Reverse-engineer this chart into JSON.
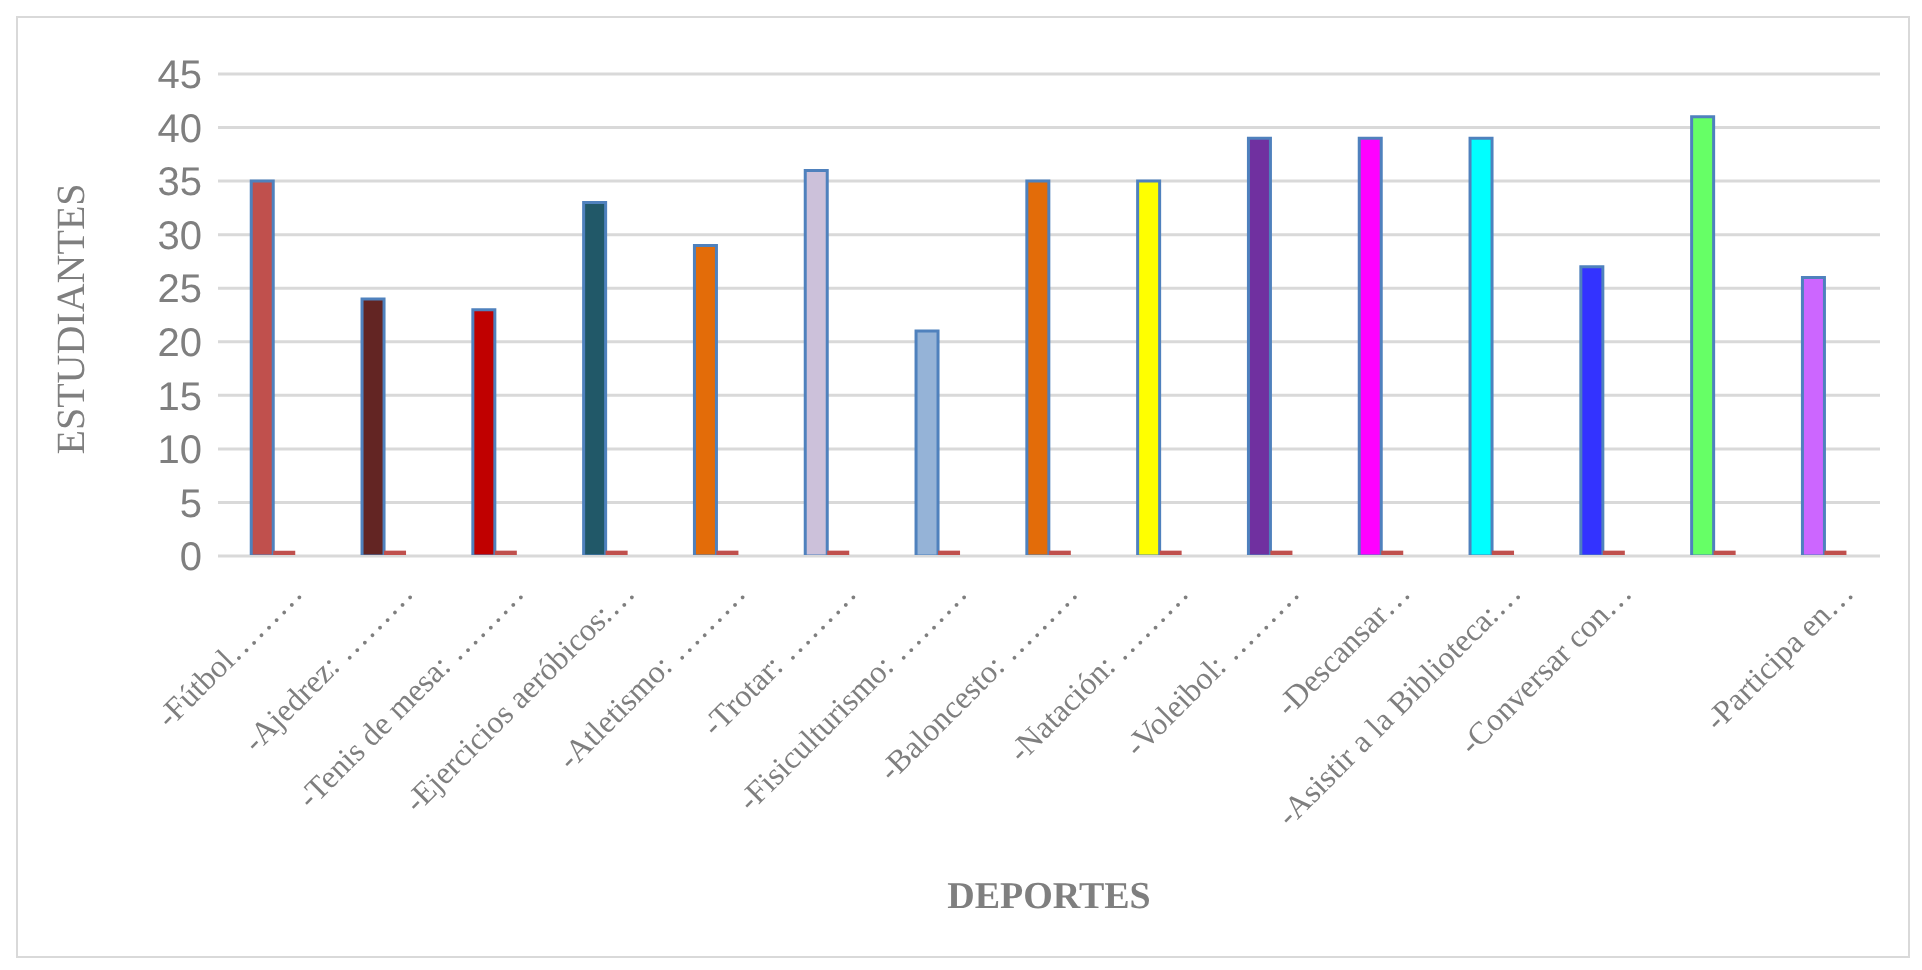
{
  "chart_data": {
    "type": "bar",
    "xlabel": "DEPORTES",
    "ylabel": "ESTUDIANTES",
    "categories": [
      "-Fútbol………",
      "-Ajedrez: ………",
      "-Tenis de mesa: ………",
      "-Ejercicios aeróbicos:…",
      "-Atletismo: ………",
      "-Trotar: ………",
      "-Fisiculturismo: ………",
      "-Baloncesto: ………",
      "-Natación: ………",
      "-Voleibol: ………",
      "-Descansar…",
      "-Asistir a la Biblioteca:…",
      "-Conversar con…",
      null,
      "-Participa en…"
    ],
    "series": [
      {
        "values": [
          35,
          24,
          23,
          33,
          29,
          36,
          21,
          35,
          35,
          39,
          39,
          39,
          27,
          41,
          26
        ],
        "colors": [
          "#c0504d",
          "#632523",
          "#c00000",
          "#215868",
          "#e36c09",
          "#ccc1da",
          "#95b3d7",
          "#e36c09",
          "#ffff00",
          "#7030a0",
          "#ff00ff",
          "#00ffff",
          "#3333ff",
          "#66ff66",
          "#cc66ff"
        ]
      },
      {
        "values": [
          0.5,
          0.5,
          0.5,
          0.5,
          0.5,
          0.5,
          0.5,
          0.5,
          0.5,
          0.5,
          0.5,
          0.5,
          0.5,
          0.5,
          0.5
        ],
        "color": "#c0504d"
      }
    ],
    "ylim": [
      0,
      45
    ],
    "yticks": [
      0,
      5,
      10,
      15,
      20,
      25,
      30,
      35,
      40,
      45
    ],
    "grid": "y",
    "legend": false
  }
}
